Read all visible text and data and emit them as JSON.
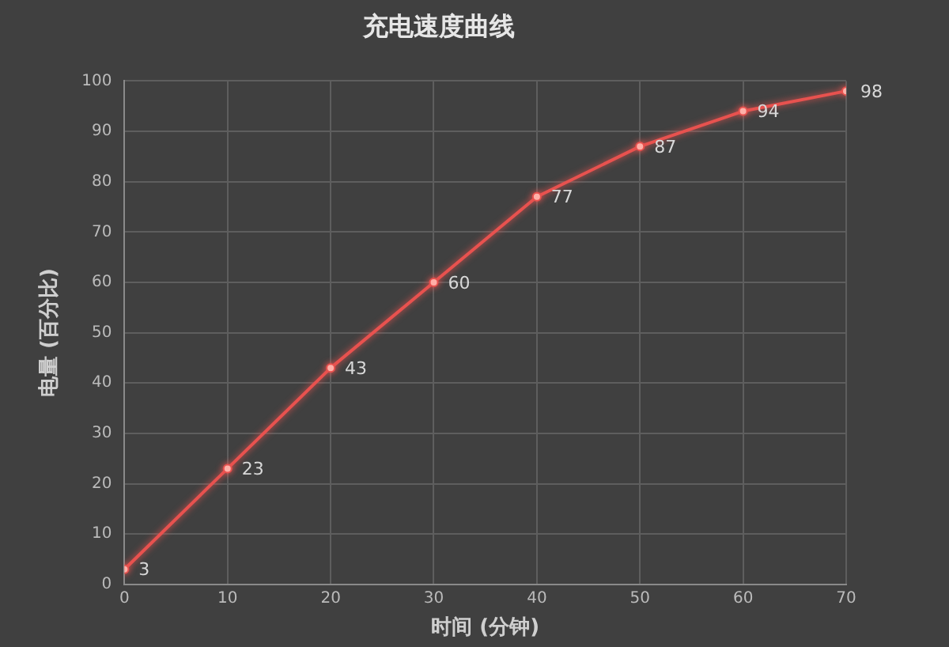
{
  "chart_data": {
    "type": "line",
    "title": "充电速度曲线",
    "xlabel": "时间 (分钟)",
    "ylabel": "电量 (百分比)",
    "x": [
      0,
      10,
      20,
      30,
      40,
      50,
      60,
      70
    ],
    "series": [
      {
        "color": "#e8524f",
        "values": [
          3,
          23,
          43,
          60,
          77,
          87,
          94,
          98
        ]
      }
    ],
    "xlim": [
      0,
      70
    ],
    "xticks": [
      0,
      10,
      20,
      30,
      40,
      50,
      60,
      70
    ],
    "ylim": [
      0,
      100
    ],
    "yticks": [
      0,
      10,
      20,
      30,
      40,
      50,
      60,
      70,
      80,
      90,
      100
    ],
    "grid": true,
    "legend": false,
    "marker": "circle",
    "line_style": "solid",
    "data_labels": true
  }
}
